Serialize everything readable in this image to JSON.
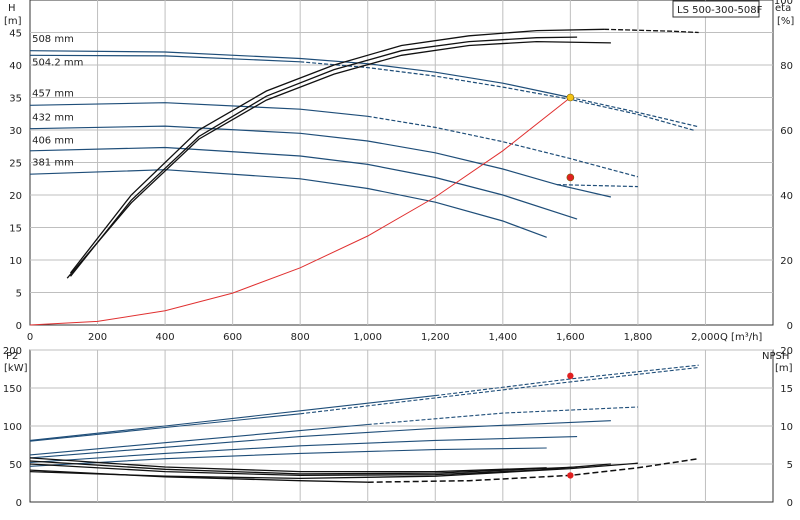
{
  "chart_data": [
    {
      "type": "line",
      "title_box": "LS 500-300-508F",
      "y_label": "H",
      "y_unit": "[m]",
      "y2_label": "eta",
      "y2_unit": "[%]",
      "x_label": "Q",
      "x_unit": "[m³/h]",
      "x_ticks": [
        "0",
        "200",
        "400",
        "600",
        "800",
        "1,000",
        "1,200",
        "1,400",
        "1,600",
        "1,800",
        "2,000"
      ],
      "xlim": [
        0,
        2200
      ],
      "y_ticks": [
        "0",
        "5",
        "10",
        "15",
        "20",
        "25",
        "30",
        "35",
        "40",
        "45"
      ],
      "ylim": [
        0,
        50
      ],
      "y2_ticks": [
        "0",
        "20",
        "40",
        "60",
        "80",
        "100"
      ],
      "y2lim": [
        0,
        100
      ],
      "grid": true,
      "head_curves": [
        {
          "name": "508 mm",
          "color": "#1f4e79",
          "solid": [
            [
              0,
              42.2
            ],
            [
              400,
              42.0
            ],
            [
              800,
              41.0
            ],
            [
              1000,
              40.2
            ],
            [
              1200,
              38.9
            ],
            [
              1400,
              37.2
            ],
            [
              1600,
              35.0
            ]
          ],
          "dashed": [
            [
              1600,
              35.0
            ],
            [
              1800,
              32.7
            ],
            [
              1980,
              30.5
            ]
          ]
        },
        {
          "name": "504.2 mm",
          "color": "#1f4e79",
          "solid": [
            [
              0,
              41.5
            ],
            [
              400,
              41.4
            ],
            [
              800,
              40.5
            ]
          ],
          "dashed": [
            [
              800,
              40.5
            ],
            [
              1000,
              39.6
            ],
            [
              1200,
              38.3
            ],
            [
              1400,
              36.6
            ],
            [
              1600,
              34.7
            ],
            [
              1800,
              32.4
            ],
            [
              1970,
              29.9
            ]
          ]
        },
        {
          "name": "457 mm",
          "color": "#1f4e79",
          "solid": [
            [
              0,
              33.8
            ],
            [
              400,
              34.2
            ],
            [
              800,
              33.2
            ],
            [
              1000,
              32.1
            ]
          ],
          "dashed": [
            [
              1000,
              32.1
            ],
            [
              1200,
              30.4
            ],
            [
              1400,
              28.2
            ],
            [
              1600,
              25.6
            ],
            [
              1800,
              22.8
            ]
          ]
        },
        {
          "name": "432 mm",
          "color": "#1f4e79",
          "solid": [
            [
              0,
              30.2
            ],
            [
              400,
              30.6
            ],
            [
              800,
              29.5
            ],
            [
              1000,
              28.3
            ],
            [
              1200,
              26.5
            ],
            [
              1400,
              24.0
            ],
            [
              1560,
              21.6
            ],
            [
              1720,
              19.7
            ]
          ],
          "dashed": [
            [
              1560,
              21.6
            ],
            [
              1800,
              21.3
            ]
          ]
        },
        {
          "name": "406 mm",
          "color": "#1f4e79",
          "solid": [
            [
              0,
              26.8
            ],
            [
              400,
              27.3
            ],
            [
              800,
              26.0
            ],
            [
              1000,
              24.7
            ],
            [
              1200,
              22.7
            ],
            [
              1400,
              20.0
            ],
            [
              1620,
              16.3
            ]
          ],
          "dashed": []
        },
        {
          "name": "381 mm",
          "color": "#1f4e79",
          "solid": [
            [
              0,
              23.2
            ],
            [
              400,
              23.9
            ],
            [
              800,
              22.5
            ],
            [
              1000,
              21.0
            ],
            [
              1200,
              18.9
            ],
            [
              1400,
              16.0
            ],
            [
              1530,
              13.5
            ]
          ],
          "dashed": []
        }
      ],
      "efficiency_curves": [
        {
          "color": "#111111",
          "solid": [
            [
              120,
              8.0
            ],
            [
              300,
              20.0
            ],
            [
              500,
              30.0
            ],
            [
              700,
              36.0
            ],
            [
              900,
              40.0
            ],
            [
              1100,
              43.0
            ],
            [
              1300,
              44.5
            ],
            [
              1500,
              45.3
            ],
            [
              1700,
              45.5
            ]
          ],
          "dashed": [
            [
              1700,
              45.5
            ],
            [
              1900,
              45.2
            ],
            [
              1980,
              45.0
            ]
          ]
        },
        {
          "color": "#111111",
          "solid": [
            [
              120,
              7.5
            ],
            [
              300,
              19.2
            ],
            [
              500,
              29.0
            ],
            [
              700,
              35.2
            ],
            [
              900,
              39.3
            ],
            [
              1100,
              42.2
            ],
            [
              1300,
              43.6
            ],
            [
              1500,
              44.2
            ],
            [
              1620,
              44.3
            ]
          ],
          "dashed": []
        },
        {
          "color": "#111111",
          "solid": [
            [
              110,
              7.2
            ],
            [
              300,
              18.8
            ],
            [
              500,
              28.6
            ],
            [
              700,
              34.6
            ],
            [
              900,
              38.6
            ],
            [
              1100,
              41.5
            ],
            [
              1300,
              43.0
            ],
            [
              1500,
              43.6
            ],
            [
              1720,
              43.4
            ]
          ],
          "dashed": []
        }
      ],
      "system_curve": {
        "color": "#e03030",
        "points": [
          [
            0,
            0
          ],
          [
            200,
            0.55
          ],
          [
            400,
            2.2
          ],
          [
            600,
            4.9
          ],
          [
            800,
            8.8
          ],
          [
            1000,
            13.7
          ],
          [
            1200,
            19.7
          ],
          [
            1400,
            26.8
          ],
          [
            1600,
            35.0
          ]
        ]
      },
      "markers": [
        {
          "x": 1600,
          "y": 35.0,
          "color": "#f5c518"
        },
        {
          "x": 1600,
          "y": 22.7,
          "color": "#e02020"
        }
      ],
      "diameter_labels": [
        {
          "text": "508 mm",
          "x": 95,
          "y": 44.0
        },
        {
          "text": "504.2 mm",
          "x": 95,
          "y": 40.4
        },
        {
          "text": "457 mm",
          "x": 95,
          "y": 35.6
        },
        {
          "text": "432 mm",
          "x": 95,
          "y": 31.9
        },
        {
          "text": "406 mm",
          "x": 95,
          "y": 28.4
        },
        {
          "text": "381 mm",
          "x": 95,
          "y": 25.0
        }
      ]
    },
    {
      "type": "line",
      "y_label": "P2",
      "y_unit": "[kW]",
      "y2_label": "NPSH",
      "y2_unit": "[m]",
      "xlim": [
        0,
        2200
      ],
      "y_ticks": [
        "0",
        "50",
        "100",
        "150",
        "200"
      ],
      "ylim": [
        0,
        200
      ],
      "y2_ticks": [
        "0",
        "5",
        "10",
        "15",
        "20"
      ],
      "y2lim": [
        0,
        20
      ],
      "grid": true,
      "power_curves": [
        {
          "color": "#1f4e79",
          "solid": [
            [
              0,
              81
            ],
            [
              400,
              100
            ],
            [
              800,
              120
            ],
            [
              1200,
              140
            ]
          ],
          "dashed": [
            [
              1200,
              140
            ],
            [
              1600,
              162
            ],
            [
              1980,
              180
            ]
          ]
        },
        {
          "color": "#1f4e79",
          "solid": [
            [
              0,
              80
            ],
            [
              400,
              98
            ],
            [
              800,
              116
            ]
          ],
          "dashed": [
            [
              800,
              116
            ],
            [
              1200,
              137
            ],
            [
              1600,
              158
            ],
            [
              1980,
              177
            ]
          ]
        },
        {
          "color": "#1f4e79",
          "solid": [
            [
              0,
              62
            ],
            [
              400,
              78
            ],
            [
              800,
              94
            ],
            [
              1000,
              102
            ]
          ],
          "dashed": [
            [
              1000,
              102
            ],
            [
              1400,
              117
            ],
            [
              1800,
              125
            ]
          ]
        },
        {
          "color": "#1f4e79",
          "solid": [
            [
              0,
              58
            ],
            [
              400,
              72
            ],
            [
              800,
              86
            ],
            [
              1200,
              97
            ],
            [
              1720,
              107
            ]
          ],
          "dashed": []
        },
        {
          "color": "#1f4e79",
          "solid": [
            [
              0,
              52
            ],
            [
              400,
              64
            ],
            [
              800,
              74
            ],
            [
              1200,
              81
            ],
            [
              1620,
              86
            ]
          ],
          "dashed": []
        },
        {
          "color": "#1f4e79",
          "solid": [
            [
              0,
              47
            ],
            [
              400,
              57
            ],
            [
              800,
              64
            ],
            [
              1200,
              69
            ],
            [
              1530,
              71
            ]
          ],
          "dashed": []
        }
      ],
      "npsh_curves": [
        {
          "color": "#111111",
          "solid": [
            [
              0,
              4.2
            ],
            [
              400,
              3.3
            ],
            [
              800,
              2.8
            ],
            [
              1000,
              2.6
            ]
          ],
          "dashed": [
            [
              1000,
              2.6
            ],
            [
              1300,
              2.8
            ],
            [
              1600,
              3.5
            ],
            [
              1800,
              4.5
            ],
            [
              1980,
              5.7
            ]
          ]
        },
        {
          "color": "#111111",
          "solid": [
            [
              0,
              4.0
            ],
            [
              400,
              3.4
            ],
            [
              800,
              3.1
            ],
            [
              1200,
              3.4
            ],
            [
              1600,
              4.4
            ],
            [
              1800,
              5.1
            ]
          ],
          "dashed": []
        },
        {
          "color": "#111111",
          "solid": [
            [
              0,
              5.0
            ],
            [
              400,
              4.0
            ],
            [
              800,
              3.5
            ],
            [
              1200,
              3.6
            ],
            [
              1500,
              4.2
            ],
            [
              1720,
              5.0
            ]
          ],
          "dashed": []
        },
        {
          "color": "#111111",
          "solid": [
            [
              0,
              5.4
            ],
            [
              400,
              4.3
            ],
            [
              800,
              3.7
            ],
            [
              1200,
              3.8
            ],
            [
              1620,
              4.6
            ]
          ],
          "dashed": []
        },
        {
          "color": "#111111",
          "solid": [
            [
              0,
              5.8
            ],
            [
              400,
              4.6
            ],
            [
              800,
              4.0
            ],
            [
              1200,
              4.0
            ],
            [
              1530,
              4.5
            ]
          ],
          "dashed": []
        }
      ],
      "markers": [
        {
          "x": 1600,
          "y": 166,
          "color": "#e02020"
        },
        {
          "x": 1600,
          "y": 35,
          "color": "#e02020"
        }
      ]
    }
  ]
}
